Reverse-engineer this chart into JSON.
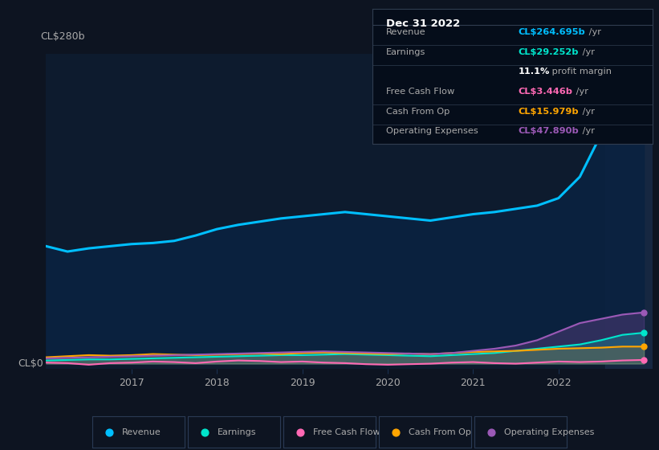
{
  "background_color": "#0d1421",
  "plot_bg_color": "#0d1b2e",
  "title_label": "CL$280b",
  "zero_label": "CL$0",
  "years": [
    2016.0,
    2016.25,
    2016.5,
    2016.75,
    2017.0,
    2017.25,
    2017.5,
    2017.75,
    2018.0,
    2018.25,
    2018.5,
    2018.75,
    2019.0,
    2019.25,
    2019.5,
    2019.75,
    2020.0,
    2020.25,
    2020.5,
    2020.75,
    2021.0,
    2021.25,
    2021.5,
    2021.75,
    2022.0,
    2022.25,
    2022.5,
    2022.75,
    2023.0
  ],
  "revenue": [
    110,
    105,
    108,
    110,
    112,
    113,
    115,
    120,
    126,
    130,
    133,
    136,
    138,
    140,
    142,
    140,
    138,
    136,
    134,
    137,
    140,
    142,
    145,
    148,
    155,
    175,
    215,
    260,
    265
  ],
  "earnings": [
    3,
    3.5,
    4,
    4,
    4.5,
    5,
    5.5,
    6,
    6.5,
    7,
    7.5,
    8,
    8,
    8.5,
    9,
    8.5,
    8,
    7.5,
    7,
    8,
    9,
    10,
    12,
    14,
    16,
    18,
    22,
    27,
    29
  ],
  "free_cash_flow": [
    1,
    0.5,
    -1,
    0.5,
    1,
    2,
    1.5,
    0.5,
    2,
    3,
    2.5,
    1.5,
    2,
    1,
    0.5,
    -0.5,
    -1,
    -0.5,
    0,
    1,
    1.5,
    0.5,
    0,
    1,
    2,
    1.5,
    2,
    3,
    3.5
  ],
  "cash_from_op": [
    6,
    7,
    8,
    7.5,
    8,
    9,
    8.5,
    8,
    8.5,
    9,
    9.5,
    9,
    10,
    10.5,
    10,
    9.5,
    9,
    9.5,
    9,
    10,
    11,
    11.5,
    12,
    13,
    14,
    14.5,
    15,
    16,
    16
  ],
  "operating_expenses": [
    5,
    5.5,
    6,
    6.5,
    7,
    7.5,
    8,
    8.5,
    9,
    9.5,
    10,
    10.5,
    11,
    11.5,
    11,
    10.5,
    10,
    9.5,
    9,
    10,
    12,
    14,
    17,
    22,
    30,
    38,
    42,
    46,
    48
  ],
  "revenue_color": "#00bfff",
  "earnings_color": "#00e5cc",
  "fcf_color": "#ff69b4",
  "cashop_color": "#ffa500",
  "opex_color": "#9b59b6",
  "grid_color": "#1a3050",
  "text_color": "#aaaaaa",
  "legend_bg": "#0d1421",
  "legend_border": "#2a3a55",
  "tooltip_bg": "#050d1a",
  "tooltip_border": "#303d50",
  "xmin": 2016.0,
  "xmax": 2023.1,
  "ymin": -5,
  "ymax": 290,
  "tooltip_title": "Dec 31 2022",
  "tooltip_rows": [
    {
      "label": "Revenue",
      "value": "CL$264.695b",
      "suffix": " /yr",
      "color": "#00bfff"
    },
    {
      "label": "Earnings",
      "value": "CL$29.252b",
      "suffix": " /yr",
      "color": "#00e5cc"
    },
    {
      "label": "",
      "value": "11.1%",
      "suffix": " profit margin",
      "color": "#ffffff"
    },
    {
      "label": "Free Cash Flow",
      "value": "CL$3.446b",
      "suffix": " /yr",
      "color": "#ff69b4"
    },
    {
      "label": "Cash From Op",
      "value": "CL$15.979b",
      "suffix": " /yr",
      "color": "#ffa500"
    },
    {
      "label": "Operating Expenses",
      "value": "CL$47.890b",
      "suffix": " /yr",
      "color": "#9b59b6"
    }
  ],
  "legend_items": [
    {
      "label": "Revenue",
      "color": "#00bfff"
    },
    {
      "label": "Earnings",
      "color": "#00e5cc"
    },
    {
      "label": "Free Cash Flow",
      "color": "#ff69b4"
    },
    {
      "label": "Cash From Op",
      "color": "#ffa500"
    },
    {
      "label": "Operating Expenses",
      "color": "#9b59b6"
    }
  ],
  "highlight_color": "#1a2d4a",
  "highlight_xstart": 2022.55
}
